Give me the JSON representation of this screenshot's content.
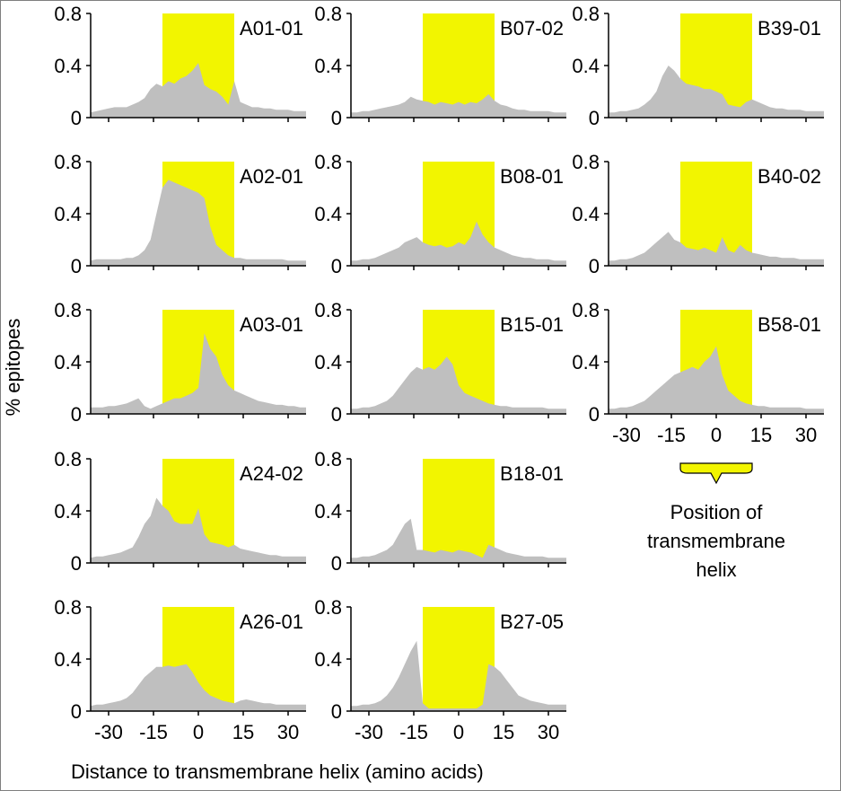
{
  "chart_data": {
    "type": "area",
    "ylabel": "% epitopes",
    "xlabel": "Distance to transmembrane helix (amino acids)",
    "xlim": [
      -36,
      36
    ],
    "ylim": [
      0,
      0.8
    ],
    "yticks": [
      0,
      0.4,
      0.8
    ],
    "ytick_labels": [
      "0",
      "0.4",
      "0.8"
    ],
    "xticks": [
      -30,
      -15,
      0,
      15,
      30
    ],
    "xtick_labels": [
      "-30",
      "-15",
      "0",
      "15",
      "30"
    ],
    "highlight_region": [
      -12,
      12
    ],
    "colors": {
      "area": "#bfbfbf",
      "highlight": "#f2f500",
      "axis": "#000000"
    },
    "legend": {
      "label_lines": [
        "Position of",
        "transmembrane",
        "helix"
      ],
      "color": "#f2f500"
    },
    "x": [
      -36,
      -34,
      -32,
      -30,
      -28,
      -26,
      -24,
      -22,
      -20,
      -18,
      -16,
      -14,
      -12,
      -10,
      -8,
      -6,
      -4,
      -2,
      0,
      2,
      4,
      6,
      8,
      10,
      12,
      14,
      16,
      18,
      20,
      22,
      24,
      26,
      28,
      30,
      32,
      34,
      36
    ],
    "panels": [
      {
        "name": "A01-01",
        "values": [
          0.04,
          0.05,
          0.06,
          0.07,
          0.08,
          0.08,
          0.08,
          0.1,
          0.12,
          0.15,
          0.22,
          0.26,
          0.24,
          0.28,
          0.26,
          0.3,
          0.32,
          0.36,
          0.42,
          0.25,
          0.22,
          0.2,
          0.16,
          0.1,
          0.28,
          0.12,
          0.1,
          0.08,
          0.08,
          0.07,
          0.07,
          0.06,
          0.06,
          0.06,
          0.05,
          0.05,
          0.05
        ]
      },
      {
        "name": "B07-02",
        "values": [
          0.04,
          0.04,
          0.05,
          0.05,
          0.06,
          0.07,
          0.08,
          0.09,
          0.1,
          0.12,
          0.16,
          0.14,
          0.13,
          0.12,
          0.1,
          0.12,
          0.11,
          0.1,
          0.12,
          0.1,
          0.12,
          0.11,
          0.14,
          0.18,
          0.13,
          0.1,
          0.09,
          0.07,
          0.06,
          0.06,
          0.05,
          0.05,
          0.05,
          0.05,
          0.04,
          0.04,
          0.04
        ]
      },
      {
        "name": "B39-01",
        "values": [
          0.04,
          0.04,
          0.05,
          0.05,
          0.06,
          0.07,
          0.1,
          0.14,
          0.2,
          0.32,
          0.4,
          0.36,
          0.3,
          0.26,
          0.25,
          0.24,
          0.22,
          0.22,
          0.2,
          0.18,
          0.1,
          0.09,
          0.08,
          0.12,
          0.14,
          0.12,
          0.1,
          0.08,
          0.07,
          0.07,
          0.06,
          0.06,
          0.06,
          0.05,
          0.05,
          0.05,
          0.05
        ]
      },
      {
        "name": "A02-01",
        "values": [
          0.04,
          0.05,
          0.05,
          0.05,
          0.05,
          0.05,
          0.06,
          0.06,
          0.08,
          0.12,
          0.2,
          0.4,
          0.6,
          0.66,
          0.64,
          0.62,
          0.6,
          0.58,
          0.56,
          0.52,
          0.3,
          0.16,
          0.12,
          0.08,
          0.06,
          0.06,
          0.05,
          0.05,
          0.05,
          0.05,
          0.05,
          0.05,
          0.05,
          0.04,
          0.04,
          0.04,
          0.04
        ]
      },
      {
        "name": "B08-01",
        "values": [
          0.04,
          0.04,
          0.05,
          0.05,
          0.06,
          0.08,
          0.1,
          0.12,
          0.14,
          0.18,
          0.2,
          0.22,
          0.18,
          0.16,
          0.15,
          0.16,
          0.14,
          0.15,
          0.18,
          0.16,
          0.22,
          0.34,
          0.24,
          0.18,
          0.14,
          0.12,
          0.1,
          0.08,
          0.07,
          0.06,
          0.06,
          0.05,
          0.05,
          0.05,
          0.04,
          0.04,
          0.04
        ]
      },
      {
        "name": "B40-02",
        "values": [
          0.04,
          0.04,
          0.05,
          0.05,
          0.06,
          0.08,
          0.1,
          0.14,
          0.18,
          0.22,
          0.26,
          0.2,
          0.18,
          0.14,
          0.13,
          0.12,
          0.14,
          0.12,
          0.1,
          0.22,
          0.12,
          0.1,
          0.16,
          0.12,
          0.1,
          0.09,
          0.08,
          0.07,
          0.07,
          0.06,
          0.06,
          0.06,
          0.05,
          0.05,
          0.05,
          0.05,
          0.05
        ]
      },
      {
        "name": "A03-01",
        "values": [
          0.05,
          0.05,
          0.05,
          0.06,
          0.06,
          0.07,
          0.08,
          0.1,
          0.12,
          0.06,
          0.04,
          0.06,
          0.08,
          0.1,
          0.12,
          0.12,
          0.14,
          0.16,
          0.2,
          0.62,
          0.5,
          0.44,
          0.3,
          0.22,
          0.18,
          0.16,
          0.14,
          0.12,
          0.1,
          0.09,
          0.08,
          0.07,
          0.07,
          0.06,
          0.06,
          0.05,
          0.05
        ]
      },
      {
        "name": "B15-01",
        "values": [
          0.04,
          0.04,
          0.05,
          0.05,
          0.06,
          0.08,
          0.1,
          0.14,
          0.2,
          0.26,
          0.32,
          0.36,
          0.34,
          0.36,
          0.34,
          0.38,
          0.44,
          0.38,
          0.22,
          0.16,
          0.14,
          0.12,
          0.1,
          0.08,
          0.07,
          0.06,
          0.06,
          0.05,
          0.05,
          0.05,
          0.05,
          0.05,
          0.05,
          0.04,
          0.04,
          0.04,
          0.04
        ]
      },
      {
        "name": "B58-01",
        "values": [
          0.04,
          0.04,
          0.05,
          0.05,
          0.06,
          0.08,
          0.1,
          0.14,
          0.18,
          0.22,
          0.26,
          0.3,
          0.32,
          0.34,
          0.36,
          0.34,
          0.4,
          0.44,
          0.52,
          0.3,
          0.18,
          0.14,
          0.1,
          0.08,
          0.07,
          0.06,
          0.06,
          0.05,
          0.05,
          0.05,
          0.05,
          0.05,
          0.05,
          0.04,
          0.04,
          0.04,
          0.04
        ]
      },
      {
        "name": "A24-02",
        "values": [
          0.04,
          0.05,
          0.05,
          0.06,
          0.07,
          0.08,
          0.1,
          0.12,
          0.2,
          0.3,
          0.36,
          0.5,
          0.44,
          0.4,
          0.32,
          0.3,
          0.3,
          0.3,
          0.42,
          0.22,
          0.16,
          0.15,
          0.14,
          0.12,
          0.14,
          0.11,
          0.1,
          0.09,
          0.08,
          0.07,
          0.06,
          0.06,
          0.05,
          0.05,
          0.05,
          0.05,
          0.05
        ]
      },
      {
        "name": "B18-01",
        "values": [
          0.04,
          0.04,
          0.05,
          0.05,
          0.06,
          0.08,
          0.1,
          0.14,
          0.22,
          0.3,
          0.34,
          0.1,
          0.1,
          0.09,
          0.08,
          0.1,
          0.09,
          0.08,
          0.1,
          0.09,
          0.08,
          0.06,
          0.04,
          0.14,
          0.12,
          0.1,
          0.08,
          0.07,
          0.06,
          0.05,
          0.05,
          0.05,
          0.05,
          0.04,
          0.04,
          0.04,
          0.04
        ]
      },
      {
        "name": "A26-01",
        "values": [
          0.04,
          0.05,
          0.05,
          0.06,
          0.07,
          0.08,
          0.1,
          0.14,
          0.2,
          0.26,
          0.3,
          0.34,
          0.34,
          0.35,
          0.34,
          0.35,
          0.36,
          0.3,
          0.22,
          0.16,
          0.12,
          0.1,
          0.08,
          0.07,
          0.06,
          0.08,
          0.09,
          0.08,
          0.07,
          0.06,
          0.06,
          0.05,
          0.05,
          0.05,
          0.05,
          0.05,
          0.05
        ]
      },
      {
        "name": "B27-05",
        "values": [
          0.04,
          0.04,
          0.05,
          0.05,
          0.06,
          0.08,
          0.12,
          0.18,
          0.26,
          0.36,
          0.46,
          0.54,
          0.06,
          0.02,
          0.02,
          0.02,
          0.02,
          0.02,
          0.02,
          0.02,
          0.02,
          0.02,
          0.05,
          0.36,
          0.34,
          0.3,
          0.24,
          0.18,
          0.12,
          0.1,
          0.08,
          0.07,
          0.06,
          0.05,
          0.05,
          0.05,
          0.05
        ]
      }
    ]
  }
}
